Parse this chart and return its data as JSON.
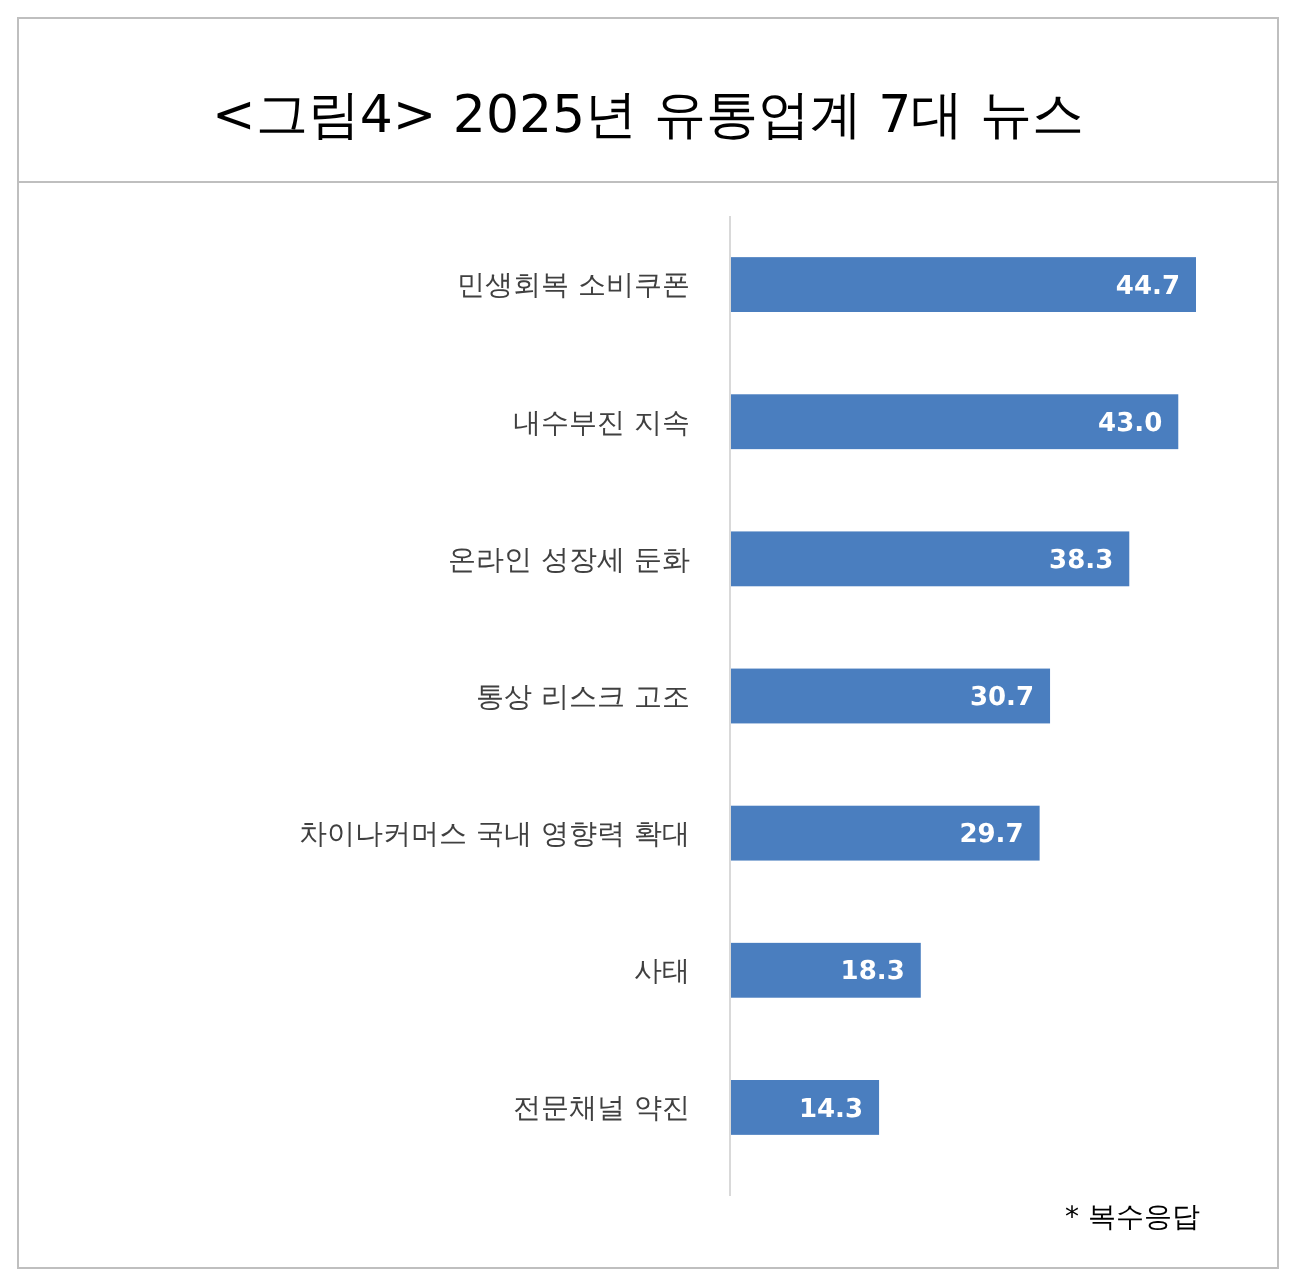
{
  "chart_data": {
    "type": "bar",
    "orientation": "horizontal",
    "title": "<그림4> 2025년 유통업계 7대 뉴스",
    "categories": [
      "민생회복 소비쿠폰",
      "내수부진 지속",
      "온라인 성장세 둔화",
      "통상 리스크 고조",
      "차이나커머스 국내 영향력 확대",
      "사태",
      "전문채널 약진"
    ],
    "values": [
      44.7,
      43.0,
      38.3,
      30.7,
      29.7,
      18.3,
      14.3
    ],
    "value_labels": [
      "44.7",
      "43.0",
      "38.3",
      "30.7",
      "29.7",
      "18.3",
      "14.3"
    ],
    "color": "#4a7ebf",
    "annotations": [
      "* 복수응답"
    ]
  }
}
